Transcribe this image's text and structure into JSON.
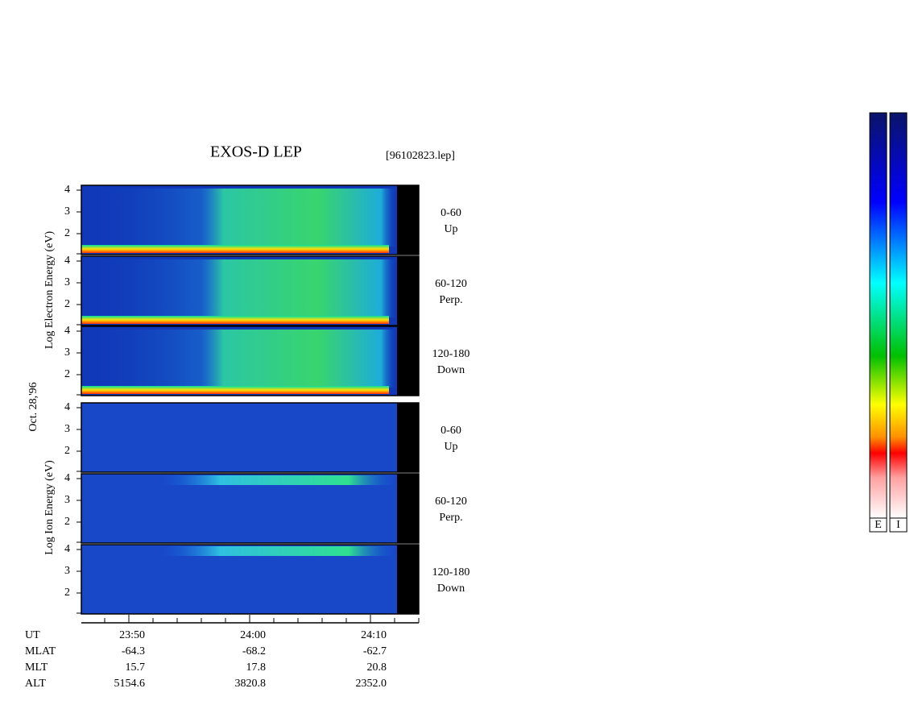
{
  "title": "EXOS-D LEP",
  "file": "[96102823.lep]",
  "date": "Oct. 28,'96",
  "electron_label": "Log  Electron  Energy (eV)",
  "ion_label": "Log  Ion  Energy (eV)",
  "panels": [
    {
      "ticks": [
        "4",
        "3",
        "2"
      ],
      "angle": "0-60",
      "direction": "Up"
    },
    {
      "ticks": [
        "4",
        "3",
        "2"
      ],
      "angle": "60-120",
      "direction": "Perp."
    },
    {
      "ticks": [
        "4",
        "3",
        "2"
      ],
      "angle": "120-180",
      "direction": "Down"
    },
    {
      "ticks": [
        "4",
        "3",
        "2"
      ],
      "angle": "0-60",
      "direction": "Up"
    },
    {
      "ticks": [
        "4",
        "3",
        "2"
      ],
      "angle": "60-120",
      "direction": "Perp."
    },
    {
      "ticks": [
        "4",
        "3",
        "2"
      ],
      "angle": "120-180",
      "direction": "Down"
    }
  ],
  "orbit_rows": [
    [
      "UT",
      "23:50",
      "24:00",
      "24:10"
    ],
    [
      "MLAT",
      "-64.3",
      "-68.2",
      "-62.7"
    ],
    [
      "MLT",
      "15.7",
      "17.8",
      "20.8"
    ],
    [
      "ALT",
      "5154.6",
      "3820.8",
      "2352.0"
    ]
  ],
  "colorbars": [
    "E",
    "I"
  ]
}
